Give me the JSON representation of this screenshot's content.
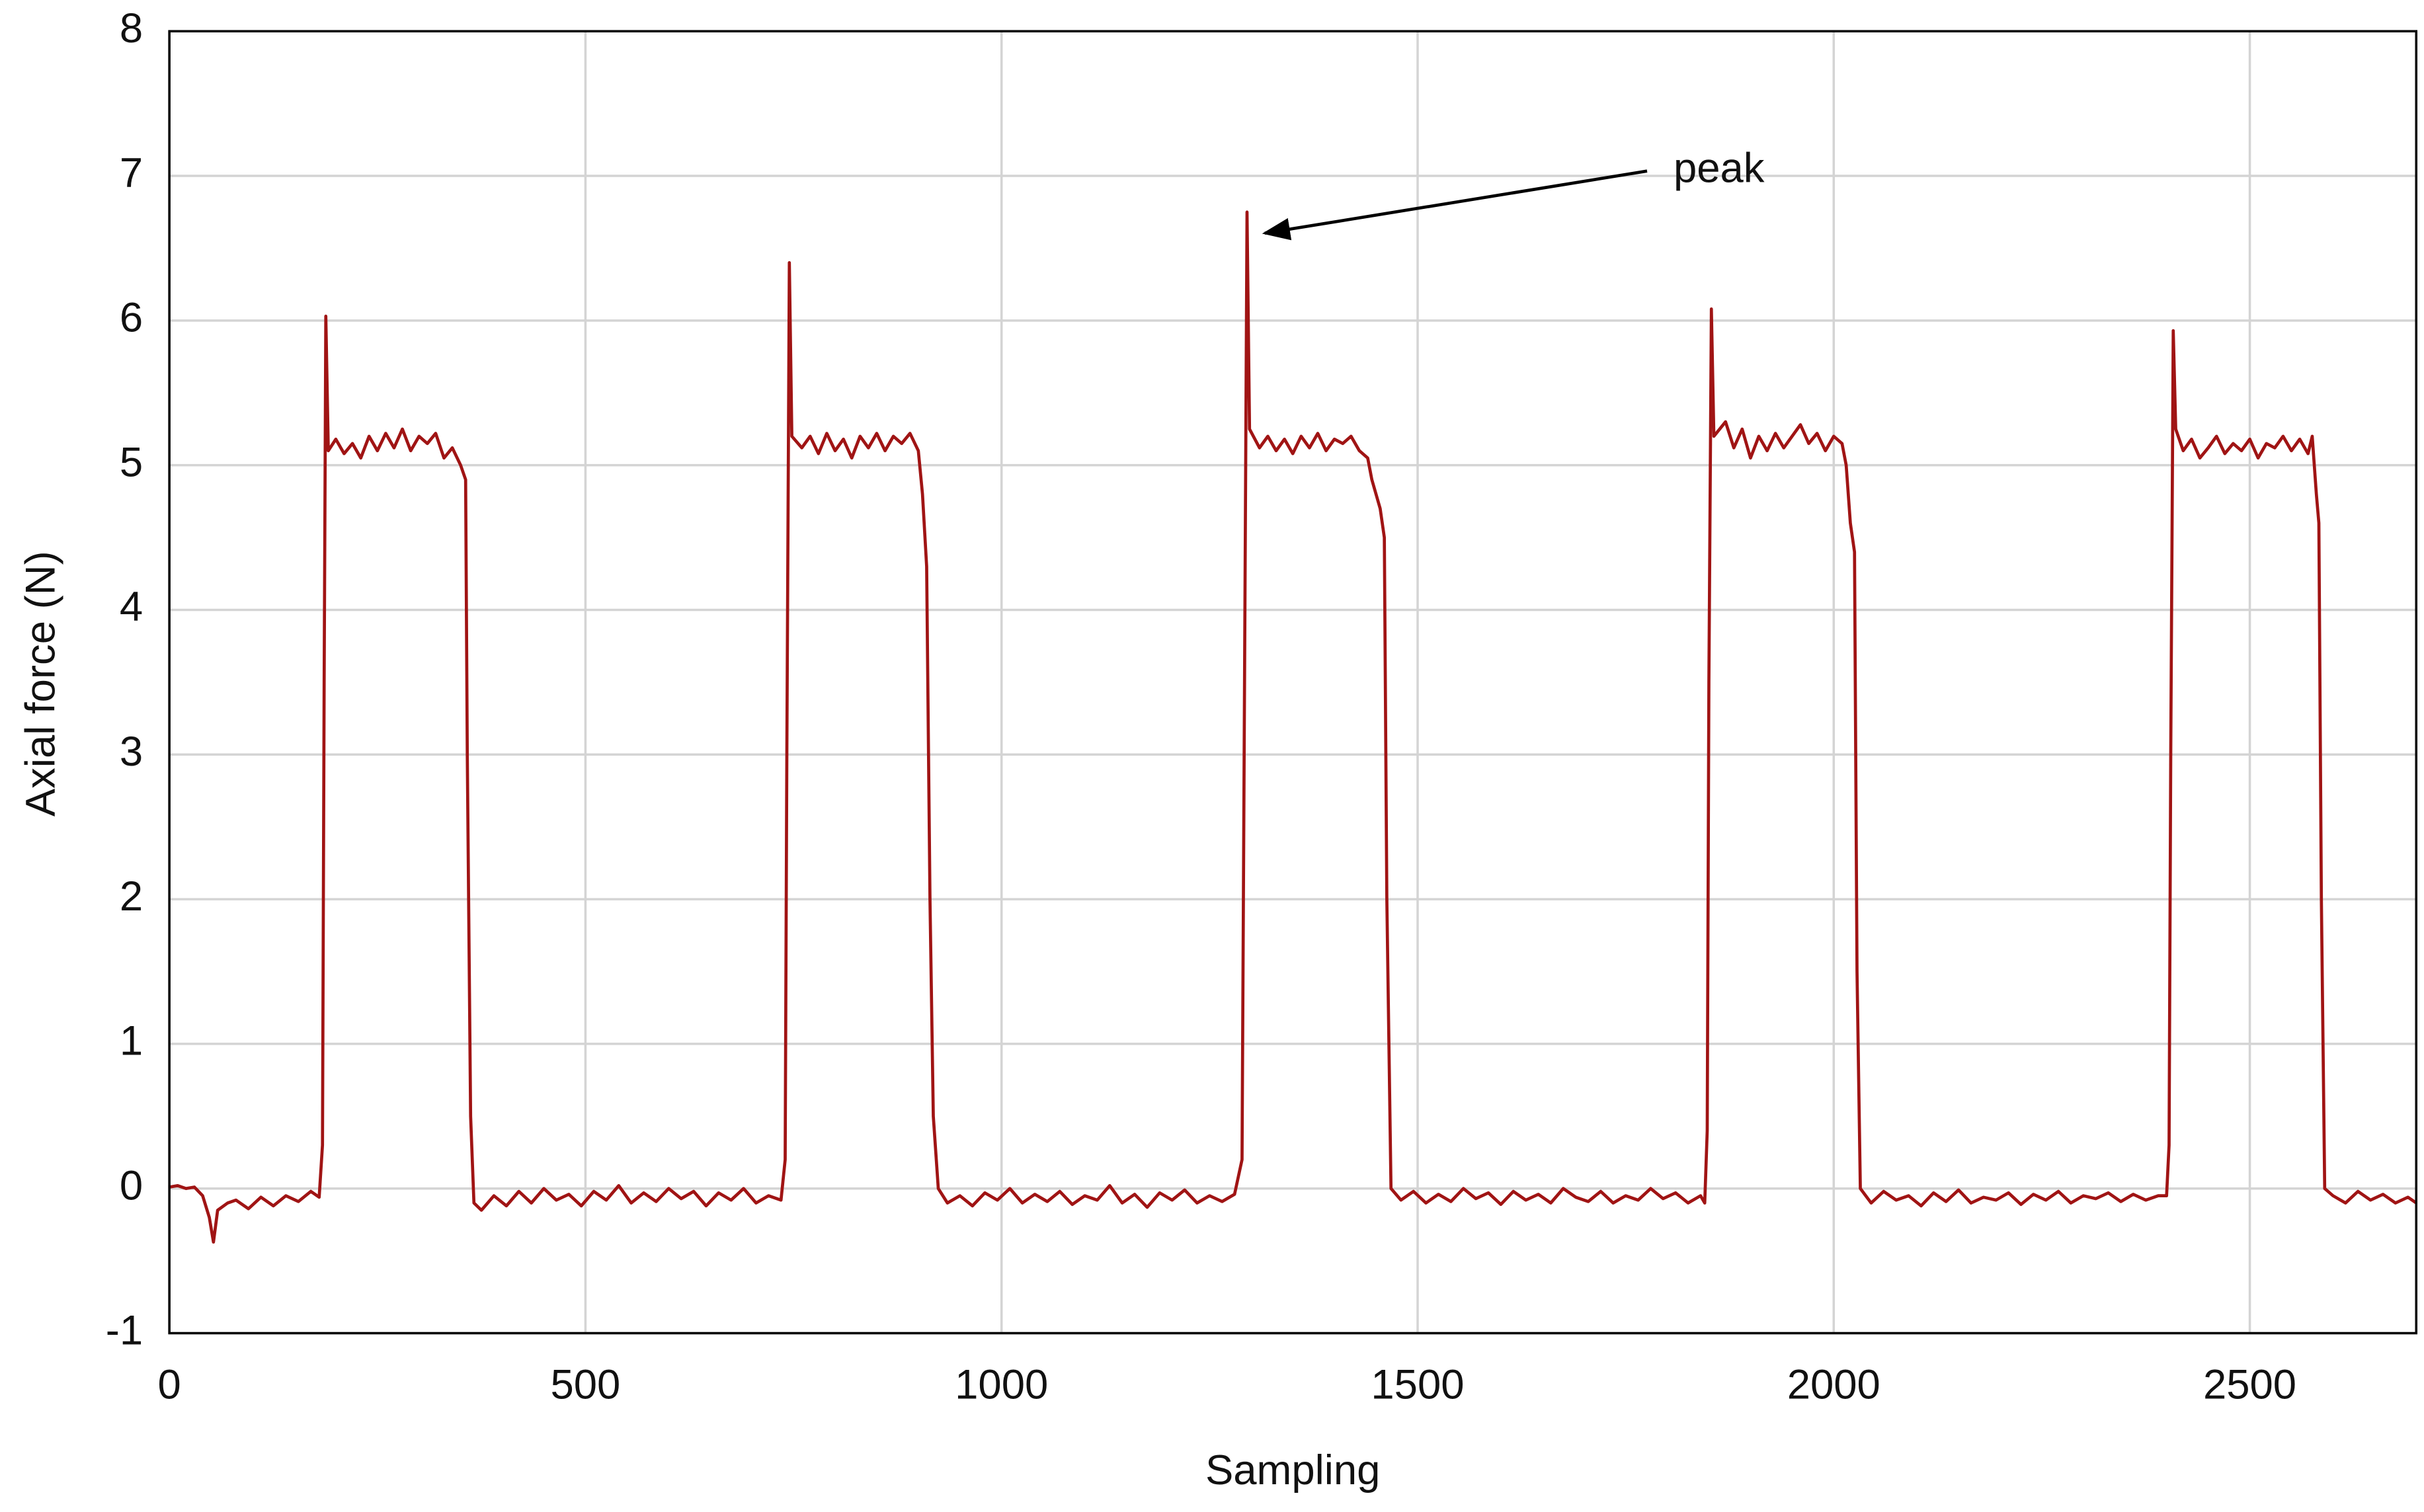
{
  "chart_data": {
    "type": "line",
    "x_label": "Sampling",
    "y_label": "Axial force (N)",
    "annotation": "peak",
    "xlim": [
      0,
      2700
    ],
    "ylim": [
      -1,
      8
    ],
    "xticks": [
      0,
      500,
      1000,
      1500,
      2000,
      2500
    ],
    "yticks": [
      -1,
      0,
      1,
      2,
      3,
      4,
      5,
      6,
      7,
      8
    ],
    "grid": true,
    "x": [
      0,
      10,
      20,
      30,
      40,
      48,
      53,
      58,
      70,
      80,
      95,
      110,
      125,
      140,
      155,
      170,
      180,
      184,
      186,
      188,
      191,
      200,
      210,
      220,
      230,
      240,
      250,
      260,
      270,
      280,
      290,
      300,
      310,
      320,
      330,
      340,
      350,
      356,
      358,
      362,
      366,
      375,
      390,
      405,
      420,
      435,
      450,
      465,
      480,
      495,
      510,
      525,
      540,
      555,
      570,
      585,
      600,
      615,
      630,
      645,
      660,
      675,
      690,
      705,
      720,
      735,
      740,
      742,
      745,
      748,
      760,
      770,
      780,
      790,
      800,
      810,
      820,
      830,
      840,
      850,
      860,
      870,
      880,
      890,
      900,
      905,
      910,
      914,
      918,
      924,
      935,
      950,
      965,
      980,
      995,
      1010,
      1025,
      1040,
      1055,
      1070,
      1085,
      1100,
      1115,
      1130,
      1145,
      1160,
      1175,
      1190,
      1205,
      1220,
      1235,
      1250,
      1265,
      1280,
      1289,
      1292,
      1295,
      1298,
      1310,
      1320,
      1330,
      1340,
      1350,
      1360,
      1370,
      1380,
      1390,
      1400,
      1410,
      1420,
      1430,
      1440,
      1445,
      1455,
      1460,
      1463,
      1468,
      1480,
      1495,
      1510,
      1525,
      1540,
      1555,
      1570,
      1585,
      1600,
      1615,
      1630,
      1645,
      1660,
      1675,
      1690,
      1705,
      1720,
      1735,
      1750,
      1765,
      1780,
      1795,
      1810,
      1825,
      1840,
      1845,
      1848,
      1850,
      1853,
      1856,
      1870,
      1880,
      1890,
      1900,
      1910,
      1920,
      1930,
      1940,
      1950,
      1960,
      1970,
      1980,
      1990,
      2000,
      2010,
      2015,
      2020,
      2025,
      2028,
      2032,
      2045,
      2060,
      2075,
      2090,
      2105,
      2120,
      2135,
      2150,
      2165,
      2180,
      2195,
      2210,
      2225,
      2240,
      2255,
      2270,
      2285,
      2300,
      2315,
      2330,
      2345,
      2360,
      2375,
      2390,
      2400,
      2403,
      2405,
      2408,
      2411,
      2420,
      2430,
      2440,
      2450,
      2460,
      2470,
      2480,
      2490,
      2500,
      2510,
      2520,
      2530,
      2540,
      2550,
      2560,
      2570,
      2575,
      2580,
      2583,
      2586,
      2590,
      2600,
      2615,
      2630,
      2645,
      2660,
      2675,
      2690,
      2700
    ],
    "series": [
      {
        "color": "#a01414",
        "values": [
          0.01,
          0.02,
          0,
          0.01,
          -0.05,
          -0.2,
          -0.37,
          -0.15,
          -0.1,
          -0.08,
          -0.14,
          -0.06,
          -0.12,
          -0.05,
          -0.09,
          -0.02,
          -0.06,
          0.3,
          3.5,
          6.03,
          5.1,
          5.18,
          5.08,
          5.15,
          5.05,
          5.2,
          5.1,
          5.22,
          5.12,
          5.25,
          5.1,
          5.2,
          5.15,
          5.22,
          5.05,
          5.12,
          5.0,
          4.9,
          3.0,
          0.5,
          -0.1,
          -0.15,
          -0.05,
          -0.12,
          -0.02,
          -0.1,
          0,
          -0.08,
          -0.04,
          -0.12,
          -0.02,
          -0.08,
          0.02,
          -0.1,
          -0.03,
          -0.09,
          0,
          -0.07,
          -0.02,
          -0.12,
          -0.03,
          -0.08,
          0,
          -0.1,
          -0.05,
          -0.08,
          0.2,
          3,
          6.4,
          5.2,
          5.12,
          5.2,
          5.08,
          5.22,
          5.1,
          5.18,
          5.05,
          5.2,
          5.12,
          5.22,
          5.1,
          5.2,
          5.15,
          5.22,
          5.1,
          4.8,
          4.3,
          2,
          0.5,
          0,
          -0.1,
          -0.05,
          -0.12,
          -0.03,
          -0.08,
          0,
          -0.1,
          -0.04,
          -0.09,
          -0.02,
          -0.11,
          -0.05,
          -0.08,
          0.02,
          -0.1,
          -0.04,
          -0.13,
          -0.03,
          -0.08,
          -0.01,
          -0.1,
          -0.05,
          -0.09,
          -0.04,
          0.2,
          3.5,
          6.75,
          5.25,
          5.12,
          5.2,
          5.1,
          5.18,
          5.08,
          5.2,
          5.12,
          5.22,
          5.1,
          5.18,
          5.15,
          5.2,
          5.1,
          5.05,
          4.9,
          4.7,
          4.5,
          2,
          0,
          -0.08,
          -0.02,
          -0.1,
          -0.04,
          -0.09,
          0,
          -0.07,
          -0.03,
          -0.11,
          -0.02,
          -0.08,
          -0.04,
          -0.1,
          0,
          -0.06,
          -0.09,
          -0.02,
          -0.1,
          -0.05,
          -0.08,
          0,
          -0.07,
          -0.03,
          -0.1,
          -0.05,
          -0.1,
          0.4,
          3.5,
          6.08,
          5.2,
          5.3,
          5.12,
          5.25,
          5.05,
          5.2,
          5.1,
          5.22,
          5.12,
          5.2,
          5.28,
          5.15,
          5.22,
          5.1,
          5.2,
          5.15,
          5,
          4.6,
          4.4,
          1.5,
          0,
          -0.1,
          -0.02,
          -0.08,
          -0.05,
          -0.12,
          -0.03,
          -0.09,
          -0.01,
          -0.1,
          -0.06,
          -0.08,
          -0.03,
          -0.11,
          -0.04,
          -0.08,
          -0.02,
          -0.1,
          -0.05,
          -0.07,
          -0.03,
          -0.09,
          -0.04,
          -0.08,
          -0.05,
          -0.05,
          0.3,
          3,
          5.93,
          5.25,
          5.1,
          5.18,
          5.05,
          5.12,
          5.2,
          5.08,
          5.15,
          5.1,
          5.18,
          5.05,
          5.15,
          5.12,
          5.2,
          5.1,
          5.18,
          5.08,
          5.2,
          4.8,
          4.6,
          2,
          0,
          -0.05,
          -0.1,
          -0.02,
          -0.08,
          -0.04,
          -0.1,
          -0.06,
          -0.1
        ]
      }
    ]
  }
}
